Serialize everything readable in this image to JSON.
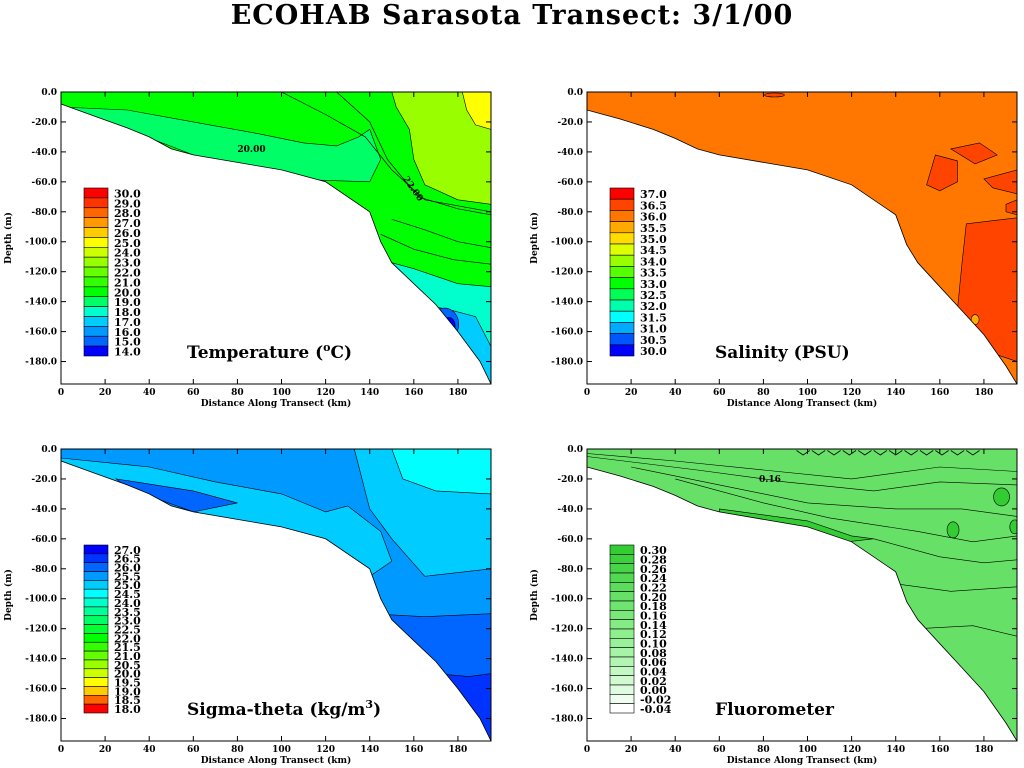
{
  "page_title": "ECOHAB Sarasota Transect: 3/1/00",
  "chart_data": [
    {
      "type": "heatmap",
      "name": "Temperature (oC)",
      "title": "Temperature (",
      "title_sup": "o",
      "title_tail": "C)",
      "xlabel": "Distance Along Transect (km)",
      "ylabel": "Depth (m)",
      "xlim": [
        0,
        195
      ],
      "ylim": [
        -195,
        0
      ],
      "xticks": [
        "0",
        "20",
        "40",
        "60",
        "80",
        "100",
        "120",
        "140",
        "160",
        "180"
      ],
      "yticks": [
        "0.0",
        "-20.0",
        "-40.0",
        "-60.0",
        "-80.0",
        "-100.0",
        "-120.0",
        "-140.0",
        "-160.0",
        "-180.0"
      ],
      "legend_levels": [
        "30.0",
        "29.0",
        "28.0",
        "27.0",
        "26.0",
        "25.0",
        "24.0",
        "23.0",
        "22.0",
        "21.0",
        "20.0",
        "19.0",
        "18.0",
        "17.0",
        "16.0",
        "15.0",
        "14.0"
      ],
      "legend_colors": [
        "#ff0000",
        "#ff3300",
        "#ff6600",
        "#ff9900",
        "#ffcc00",
        "#ffff00",
        "#ccff00",
        "#99ff00",
        "#66ff00",
        "#33ff00",
        "#00ff00",
        "#00ff66",
        "#00ffcc",
        "#00ccff",
        "#0099ff",
        "#0066ff",
        "#0000ff"
      ],
      "contour_labels": [
        "20.00",
        "22.00"
      ]
    },
    {
      "type": "heatmap",
      "name": "Salinity (PSU)",
      "title": "Salinity (PSU)",
      "xlabel": "Distance Along Transect (km)",
      "ylabel": "Depth (m)",
      "xlim": [
        0,
        195
      ],
      "ylim": [
        -195,
        0
      ],
      "xticks": [
        "0",
        "20",
        "40",
        "60",
        "80",
        "100",
        "120",
        "140",
        "160",
        "180"
      ],
      "yticks": [
        "0.0",
        "-20.0",
        "-40.0",
        "-60.0",
        "-80.0",
        "-100.0",
        "-120.0",
        "-140.0",
        "-160.0",
        "-180.0"
      ],
      "legend_levels": [
        "37.0",
        "36.5",
        "36.0",
        "35.5",
        "35.0",
        "34.5",
        "34.0",
        "33.5",
        "33.0",
        "32.5",
        "32.0",
        "31.5",
        "31.0",
        "30.5",
        "30.0"
      ],
      "legend_colors": [
        "#ff0000",
        "#ff4400",
        "#ff7700",
        "#ffaa00",
        "#ffdd00",
        "#ddff00",
        "#99ff00",
        "#55ff00",
        "#00ff00",
        "#00ff55",
        "#00ffaa",
        "#00ffff",
        "#00aaff",
        "#0055ff",
        "#0000ff"
      ],
      "contour_labels": []
    },
    {
      "type": "heatmap",
      "name": "Sigma-theta (kg/m3)",
      "title": "Sigma-theta  (kg/m",
      "title_sup": "3",
      "title_tail": ")",
      "xlabel": "Distance Along Transect (km)",
      "ylabel": "Depth (m)",
      "xlim": [
        0,
        195
      ],
      "ylim": [
        -195,
        0
      ],
      "xticks": [
        "0",
        "20",
        "40",
        "60",
        "80",
        "100",
        "120",
        "140",
        "160",
        "180"
      ],
      "yticks": [
        "0.0",
        "-20.0",
        "-40.0",
        "-60.0",
        "-80.0",
        "-100.0",
        "-120.0",
        "-140.0",
        "-160.0",
        "-180.0"
      ],
      "legend_levels": [
        "27.0",
        "26.5",
        "26.0",
        "25.5",
        "25.0",
        "24.5",
        "24.0",
        "23.5",
        "23.0",
        "22.5",
        "22.0",
        "21.5",
        "21.0",
        "20.5",
        "20.0",
        "19.5",
        "19.0",
        "18.5",
        "18.0"
      ],
      "legend_colors": [
        "#0000ff",
        "#0033ff",
        "#0066ff",
        "#0099ff",
        "#00ccff",
        "#00ffff",
        "#00ffcc",
        "#00ff99",
        "#00ff66",
        "#00ff33",
        "#00ff00",
        "#33ff00",
        "#66ff00",
        "#99ff00",
        "#ccff00",
        "#ffff00",
        "#ffcc00",
        "#ff6600",
        "#ff0000"
      ],
      "contour_labels": []
    },
    {
      "type": "heatmap",
      "name": "Fluorometer",
      "title": "Fluorometer",
      "xlabel": "Distance Along Transect (km)",
      "ylabel": "Depth (m)",
      "xlim": [
        0,
        195
      ],
      "ylim": [
        -195,
        0
      ],
      "xticks": [
        "0",
        "20",
        "40",
        "60",
        "80",
        "100",
        "120",
        "140",
        "160",
        "180"
      ],
      "yticks": [
        "0.0",
        "-20.0",
        "-40.0",
        "-60.0",
        "-80.0",
        "-100.0",
        "-120.0",
        "-140.0",
        "-160.0",
        "-180.0"
      ],
      "legend_levels": [
        "0.30",
        "0.28",
        "0.26",
        "0.24",
        "0.22",
        "0.20",
        "0.18",
        "0.16",
        "0.14",
        "0.12",
        "0.10",
        "0.08",
        "0.06",
        "0.04",
        "0.02",
        "0.00",
        "-0.02",
        "-0.04"
      ],
      "legend_colors": [
        "#33cc33",
        "#3dd03d",
        "#47d447",
        "#52d852",
        "#5cdc5c",
        "#66e066",
        "#70e470",
        "#7ae87a",
        "#85eb85",
        "#8fef8f",
        "#99f299",
        "#a6f4a6",
        "#b3f6b3",
        "#c2f8c2",
        "#d1fad1",
        "#e0fce0",
        "#f0fef0",
        "#ffffff"
      ],
      "contour_labels": [
        "0.16"
      ]
    }
  ],
  "colors": {
    "temp_main": "#00ff00",
    "temp_warm": "#99ff00",
    "temp_warmest": "#ffff00",
    "temp_cool": "#00ff66",
    "temp_cold1": "#00ffcc",
    "temp_cold2": "#00ccff",
    "temp_cold3": "#0066ff",
    "temp_cold4": "#0000ff",
    "sal_main": "#ff7700",
    "sal_high": "#ff4400",
    "sal_low": "#ffaa00",
    "sig_top": "#0099ff",
    "sig_mid": "#00ccff",
    "sig_light": "#00ffff",
    "sig_deep": "#0066ff",
    "sig_deepest": "#0033ff",
    "flu_main": "#66e066",
    "flu_bright": "#33cc33"
  }
}
